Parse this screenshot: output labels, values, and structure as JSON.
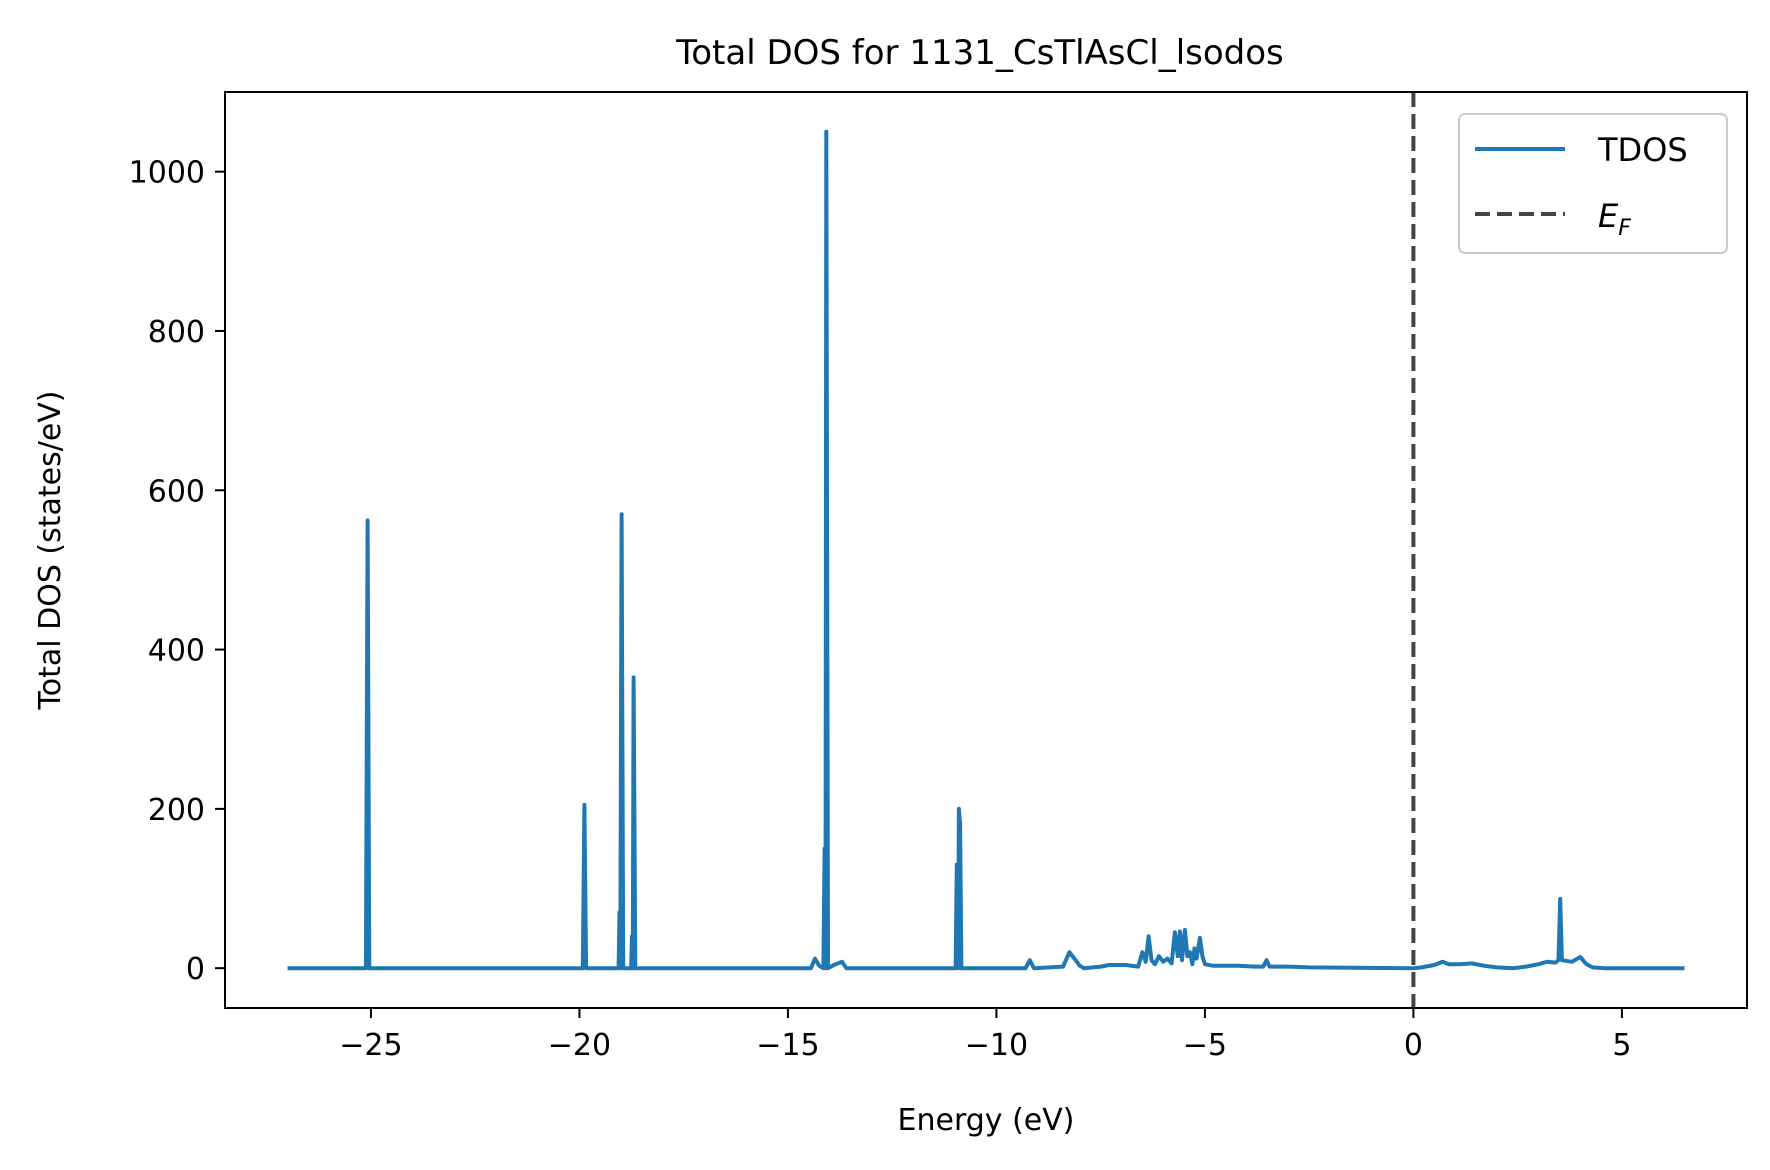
{
  "chart_data": {
    "type": "line",
    "title": "Total DOS for 1131_CsTlAsCl_lsodos",
    "xlabel": "Energy (eV)",
    "ylabel": "Total DOS (states/eV)",
    "xlim": [
      -28.5,
      8.0
    ],
    "ylim": [
      -50,
      1100
    ],
    "xticks": [
      -25,
      -20,
      -15,
      -10,
      -5,
      0,
      5
    ],
    "xtick_labels": [
      "−25",
      "−20",
      "−15",
      "−10",
      "−5",
      "0",
      "5"
    ],
    "yticks": [
      0,
      200,
      400,
      600,
      800,
      1000
    ],
    "ytick_labels": [
      "0",
      "200",
      "400",
      "600",
      "800",
      "1000"
    ],
    "grid": false,
    "legend_position": "top-right",
    "series": [
      {
        "name": "TDOS",
        "color": "#1f77b4",
        "style": "solid",
        "points": [
          [
            -27.0,
            0
          ],
          [
            -25.12,
            0
          ],
          [
            -25.08,
            562
          ],
          [
            -25.04,
            0
          ],
          [
            -19.92,
            0
          ],
          [
            -19.88,
            205
          ],
          [
            -19.84,
            0
          ],
          [
            -19.06,
            0
          ],
          [
            -19.04,
            70
          ],
          [
            -19.02,
            0
          ],
          [
            -18.99,
            570
          ],
          [
            -18.95,
            0
          ],
          [
            -18.76,
            0
          ],
          [
            -18.74,
            40
          ],
          [
            -18.72,
            0
          ],
          [
            -18.7,
            365
          ],
          [
            -18.66,
            0
          ],
          [
            -14.45,
            0
          ],
          [
            -14.35,
            12
          ],
          [
            -14.25,
            3
          ],
          [
            -14.15,
            0
          ],
          [
            -14.12,
            150
          ],
          [
            -14.1,
            0
          ],
          [
            -14.08,
            1050
          ],
          [
            -14.04,
            0
          ],
          [
            -13.9,
            4
          ],
          [
            -13.7,
            8
          ],
          [
            -13.6,
            0
          ],
          [
            -10.98,
            0
          ],
          [
            -10.95,
            130
          ],
          [
            -10.92,
            0
          ],
          [
            -10.9,
            200
          ],
          [
            -10.87,
            180
          ],
          [
            -10.84,
            0
          ],
          [
            -9.3,
            0
          ],
          [
            -9.2,
            10
          ],
          [
            -9.1,
            0
          ],
          [
            -8.4,
            2
          ],
          [
            -8.25,
            20
          ],
          [
            -8.1,
            10
          ],
          [
            -8.0,
            3
          ],
          [
            -7.9,
            0
          ],
          [
            -7.5,
            2
          ],
          [
            -7.3,
            4
          ],
          [
            -6.9,
            4
          ],
          [
            -6.6,
            2
          ],
          [
            -6.5,
            20
          ],
          [
            -6.42,
            8
          ],
          [
            -6.35,
            40
          ],
          [
            -6.28,
            10
          ],
          [
            -6.2,
            5
          ],
          [
            -6.1,
            15
          ],
          [
            -6.0,
            8
          ],
          [
            -5.9,
            12
          ],
          [
            -5.8,
            6
          ],
          [
            -5.72,
            45
          ],
          [
            -5.65,
            15
          ],
          [
            -5.6,
            46
          ],
          [
            -5.55,
            10
          ],
          [
            -5.48,
            48
          ],
          [
            -5.42,
            15
          ],
          [
            -5.36,
            20
          ],
          [
            -5.3,
            5
          ],
          [
            -5.25,
            25
          ],
          [
            -5.2,
            12
          ],
          [
            -5.12,
            38
          ],
          [
            -5.06,
            15
          ],
          [
            -5.0,
            5
          ],
          [
            -4.8,
            3
          ],
          [
            -4.2,
            3
          ],
          [
            -3.8,
            2
          ],
          [
            -3.6,
            2
          ],
          [
            -3.52,
            10
          ],
          [
            -3.45,
            2
          ],
          [
            -3.0,
            2
          ],
          [
            -2.5,
            1
          ],
          [
            0.0,
            0
          ],
          [
            0.2,
            1
          ],
          [
            0.5,
            4
          ],
          [
            0.7,
            8
          ],
          [
            0.85,
            5
          ],
          [
            1.1,
            5
          ],
          [
            1.4,
            6
          ],
          [
            1.7,
            3
          ],
          [
            2.0,
            1
          ],
          [
            2.4,
            0
          ],
          [
            2.7,
            2
          ],
          [
            3.0,
            5
          ],
          [
            3.2,
            8
          ],
          [
            3.4,
            7
          ],
          [
            3.48,
            10
          ],
          [
            3.52,
            87
          ],
          [
            3.56,
            10
          ],
          [
            3.8,
            8
          ],
          [
            4.0,
            14
          ],
          [
            4.15,
            5
          ],
          [
            4.3,
            1
          ],
          [
            4.6,
            0
          ],
          [
            6.5,
            0
          ]
        ]
      },
      {
        "name": "E_F",
        "color": "#444444",
        "style": "dashed",
        "x": 0
      }
    ],
    "legend": [
      {
        "label": "TDOS",
        "sub": ""
      },
      {
        "label": "E",
        "sub": "F"
      }
    ]
  }
}
